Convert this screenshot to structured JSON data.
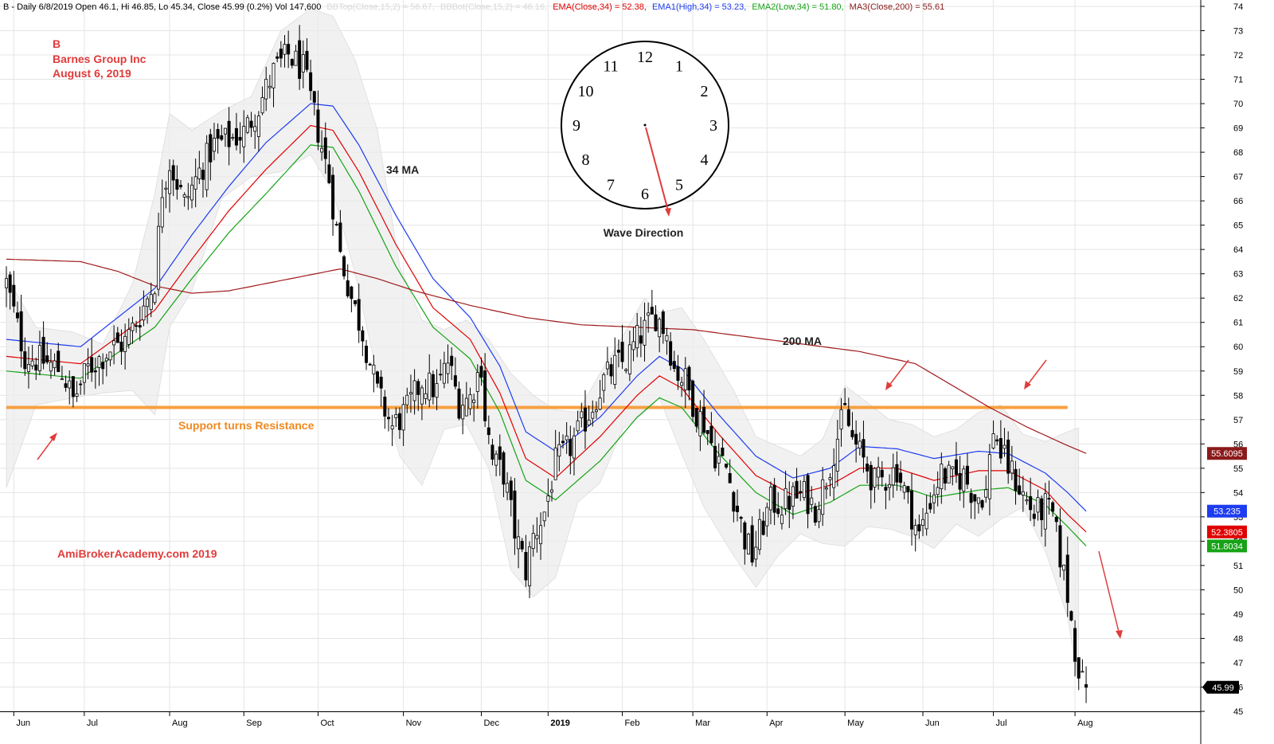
{
  "header": {
    "symbol_info": "B - Daily 6/8/2019 Open 46.1, Hi 46.85, Lo 45.34, Close 45.99 (0.2%) Vol 147,600",
    "bbtop": "BBTop(Close,15,2) = 56.67,",
    "bbbot": "BBBot(Close,15,2) = 46.16,",
    "ema": "EMA(Close,34) = 52.38,",
    "ema1": "EMA1(High,34) = 53.23,",
    "ema2": "EMA2(Low,34) = 51.80,",
    "ma3": "MA3(Close,200) = 55.61"
  },
  "titles": {
    "symbol": "B",
    "company": "Barnes Group Inc",
    "date": "August 6, 2019"
  },
  "annotations": {
    "ma34": "34 MA",
    "ma200": "200 MA",
    "support": "Support turns Resistance",
    "watermark": "AmiBrokerAcademy.com  2019",
    "wave": "Wave Direction"
  },
  "clock": {
    "numbers": [
      "12",
      "1",
      "2",
      "3",
      "4",
      "5",
      "6",
      "7",
      "8",
      "9",
      "10",
      "11"
    ]
  },
  "price_tags": [
    {
      "label": "55.6095",
      "value": 55.6095,
      "color": "#8b1a1a"
    },
    {
      "label": "53.235",
      "value": 53.235,
      "color": "#1e3cf0"
    },
    {
      "label": "52.3805",
      "value": 52.3805,
      "color": "#e00000"
    },
    {
      "label": "51.8034",
      "value": 51.8034,
      "color": "#16a316"
    },
    {
      "label": "45.99",
      "value": 45.99,
      "color": "#000000"
    }
  ],
  "colors": {
    "ema_close": "#e00000",
    "ema_high": "#1e3cf0",
    "ema_low": "#16a316",
    "ma200": "#a01a1a",
    "support": "#f7a040",
    "arrows": "#e03c3c",
    "title_text": "#e03c3c",
    "support_text": "#f0891f"
  },
  "chart_data": {
    "type": "candlestick",
    "ylim": [
      45,
      74
    ],
    "y_ticks": [
      45,
      46,
      47,
      48,
      49,
      50,
      51,
      52,
      53,
      54,
      55,
      56,
      57,
      58,
      59,
      60,
      61,
      62,
      63,
      64,
      65,
      66,
      67,
      68,
      69,
      70,
      71,
      72,
      73,
      74
    ],
    "x_ticks": [
      {
        "label": "Jun",
        "t": 2
      },
      {
        "label": "Jul",
        "t": 21
      },
      {
        "label": "Aug",
        "t": 44
      },
      {
        "label": "Sep",
        "t": 64
      },
      {
        "label": "Oct",
        "t": 84
      },
      {
        "label": "Nov",
        "t": 107
      },
      {
        "label": "Dec",
        "t": 128
      },
      {
        "label": "2019",
        "t": 146
      },
      {
        "label": "Feb",
        "t": 166
      },
      {
        "label": "Mar",
        "t": 185
      },
      {
        "label": "Apr",
        "t": 205
      },
      {
        "label": "May",
        "t": 226
      },
      {
        "label": "Jun",
        "t": 247
      },
      {
        "label": "Jul",
        "t": 266
      },
      {
        "label": "Aug",
        "t": 288
      }
    ],
    "close_anchors": [
      [
        0,
        62.6
      ],
      [
        5,
        59.6
      ],
      [
        10,
        59.4
      ],
      [
        15,
        59.0
      ],
      [
        18,
        57.8
      ],
      [
        22,
        59.1
      ],
      [
        28,
        59.9
      ],
      [
        32,
        60.2
      ],
      [
        36,
        61.3
      ],
      [
        40,
        62.7
      ],
      [
        42,
        66.5
      ],
      [
        44,
        67.6
      ],
      [
        48,
        65.9
      ],
      [
        52,
        67.2
      ],
      [
        56,
        68.3
      ],
      [
        60,
        68.5
      ],
      [
        64,
        68.8
      ],
      [
        68,
        69.9
      ],
      [
        72,
        71.3
      ],
      [
        76,
        72.0
      ],
      [
        80,
        71.4
      ],
      [
        84,
        68.9
      ],
      [
        87,
        66.9
      ],
      [
        90,
        63.8
      ],
      [
        93,
        62.0
      ],
      [
        96,
        60.6
      ],
      [
        100,
        58.1
      ],
      [
        104,
        56.7
      ],
      [
        108,
        57.4
      ],
      [
        112,
        58.6
      ],
      [
        116,
        58.2
      ],
      [
        119,
        59.4
      ],
      [
        122,
        57.7
      ],
      [
        125,
        57.9
      ],
      [
        128,
        59.3
      ],
      [
        129,
        57.2
      ],
      [
        131,
        55.3
      ],
      [
        134,
        54.8
      ],
      [
        137,
        52.4
      ],
      [
        140,
        50.8
      ],
      [
        142,
        52.2
      ],
      [
        145,
        53.2
      ],
      [
        148,
        55.2
      ],
      [
        152,
        55.9
      ],
      [
        155,
        56.7
      ],
      [
        158,
        57.6
      ],
      [
        161,
        58.6
      ],
      [
        164,
        59.2
      ],
      [
        167,
        59.4
      ],
      [
        170,
        60.3
      ],
      [
        173,
        60.9
      ],
      [
        175,
        61.3
      ],
      [
        178,
        60.6
      ],
      [
        180,
        59.1
      ],
      [
        183,
        58.6
      ],
      [
        186,
        57.3
      ],
      [
        188,
        56.9
      ],
      [
        191,
        55.6
      ],
      [
        194,
        55.0
      ],
      [
        197,
        53.3
      ],
      [
        199,
        52.1
      ],
      [
        201,
        51.4
      ],
      [
        203,
        52.3
      ],
      [
        206,
        53.6
      ],
      [
        209,
        53.5
      ],
      [
        212,
        53.8
      ],
      [
        215,
        53.9
      ],
      [
        218,
        53.4
      ],
      [
        221,
        54.6
      ],
      [
        224,
        56.3
      ],
      [
        226,
        57.3
      ],
      [
        228,
        56.2
      ],
      [
        231,
        55.3
      ],
      [
        234,
        54.4
      ],
      [
        237,
        54.6
      ],
      [
        240,
        55.0
      ],
      [
        243,
        53.6
      ],
      [
        246,
        52.2
      ],
      [
        249,
        53.7
      ],
      [
        252,
        54.8
      ],
      [
        255,
        54.5
      ],
      [
        258,
        54.7
      ],
      [
        261,
        53.8
      ],
      [
        264,
        54.0
      ],
      [
        266,
        56.7
      ],
      [
        268,
        55.6
      ],
      [
        271,
        54.8
      ],
      [
        274,
        53.9
      ],
      [
        277,
        53.1
      ],
      [
        280,
        53.4
      ],
      [
        282,
        53.0
      ],
      [
        284,
        51.4
      ],
      [
        286,
        49.8
      ],
      [
        288,
        47.6
      ],
      [
        290,
        46.1
      ],
      [
        291,
        45.99
      ]
    ],
    "n_bars": 292,
    "series": [
      {
        "name": "EMA(Close,34)",
        "anchors": [
          [
            0,
            59.6
          ],
          [
            20,
            59.3
          ],
          [
            40,
            61.5
          ],
          [
            50,
            63.6
          ],
          [
            60,
            65.6
          ],
          [
            70,
            67.3
          ],
          [
            82,
            69.1
          ],
          [
            88,
            68.9
          ],
          [
            95,
            67.2
          ],
          [
            105,
            64.2
          ],
          [
            115,
            61.6
          ],
          [
            125,
            60.3
          ],
          [
            133,
            58.1
          ],
          [
            140,
            55.4
          ],
          [
            148,
            54.6
          ],
          [
            160,
            56.3
          ],
          [
            170,
            58.0
          ],
          [
            176,
            58.8
          ],
          [
            182,
            58.3
          ],
          [
            192,
            56.4
          ],
          [
            202,
            54.7
          ],
          [
            212,
            53.9
          ],
          [
            222,
            54.3
          ],
          [
            230,
            55.0
          ],
          [
            240,
            55.0
          ],
          [
            250,
            54.5
          ],
          [
            262,
            54.9
          ],
          [
            270,
            54.9
          ],
          [
            280,
            54.1
          ],
          [
            286,
            53.1
          ],
          [
            291,
            52.38
          ]
        ]
      },
      {
        "name": "EMA1(High,34)",
        "anchors": [
          [
            0,
            60.3
          ],
          [
            20,
            60.0
          ],
          [
            40,
            62.4
          ],
          [
            50,
            64.6
          ],
          [
            60,
            66.6
          ],
          [
            70,
            68.4
          ],
          [
            82,
            70.0
          ],
          [
            88,
            69.9
          ],
          [
            95,
            68.3
          ],
          [
            105,
            65.4
          ],
          [
            115,
            62.8
          ],
          [
            125,
            61.2
          ],
          [
            133,
            59.2
          ],
          [
            140,
            56.5
          ],
          [
            148,
            55.7
          ],
          [
            160,
            57.1
          ],
          [
            170,
            58.8
          ],
          [
            176,
            59.6
          ],
          [
            182,
            59.1
          ],
          [
            192,
            57.2
          ],
          [
            202,
            55.5
          ],
          [
            212,
            54.6
          ],
          [
            222,
            55.0
          ],
          [
            230,
            55.9
          ],
          [
            240,
            55.8
          ],
          [
            250,
            55.4
          ],
          [
            262,
            55.7
          ],
          [
            270,
            55.6
          ],
          [
            280,
            54.8
          ],
          [
            286,
            54.0
          ],
          [
            291,
            53.23
          ]
        ]
      },
      {
        "name": "EMA2(Low,34)",
        "anchors": [
          [
            0,
            59.0
          ],
          [
            20,
            58.7
          ],
          [
            40,
            60.8
          ],
          [
            50,
            62.8
          ],
          [
            60,
            64.7
          ],
          [
            70,
            66.3
          ],
          [
            82,
            68.3
          ],
          [
            88,
            68.2
          ],
          [
            95,
            66.4
          ],
          [
            105,
            63.3
          ],
          [
            115,
            60.8
          ],
          [
            125,
            59.5
          ],
          [
            133,
            57.3
          ],
          [
            140,
            54.5
          ],
          [
            148,
            53.7
          ],
          [
            160,
            55.3
          ],
          [
            170,
            57.1
          ],
          [
            176,
            57.9
          ],
          [
            182,
            57.5
          ],
          [
            192,
            55.6
          ],
          [
            202,
            54.0
          ],
          [
            212,
            53.1
          ],
          [
            222,
            53.6
          ],
          [
            230,
            54.3
          ],
          [
            240,
            54.3
          ],
          [
            250,
            53.8
          ],
          [
            262,
            54.1
          ],
          [
            270,
            54.2
          ],
          [
            280,
            53.5
          ],
          [
            286,
            52.6
          ],
          [
            291,
            51.8
          ]
        ]
      },
      {
        "name": "MA3(Close,200)",
        "anchors": [
          [
            0,
            63.6
          ],
          [
            20,
            63.5
          ],
          [
            30,
            63.1
          ],
          [
            40,
            62.5
          ],
          [
            50,
            62.2
          ],
          [
            60,
            62.3
          ],
          [
            70,
            62.6
          ],
          [
            80,
            62.9
          ],
          [
            90,
            63.2
          ],
          [
            100,
            62.8
          ],
          [
            110,
            62.3
          ],
          [
            125,
            61.7
          ],
          [
            140,
            61.2
          ],
          [
            155,
            60.9
          ],
          [
            170,
            60.8
          ],
          [
            185,
            60.7
          ],
          [
            200,
            60.4
          ],
          [
            215,
            60.1
          ],
          [
            230,
            59.8
          ],
          [
            245,
            59.3
          ],
          [
            255,
            58.4
          ],
          [
            265,
            57.5
          ],
          [
            275,
            56.7
          ],
          [
            285,
            56.0
          ],
          [
            291,
            55.61
          ]
        ]
      }
    ],
    "bollinger_anchors": [
      [
        0,
        62.9,
        54.2
      ],
      [
        8,
        60.8,
        57.6
      ],
      [
        18,
        60.6,
        57.9
      ],
      [
        26,
        60.1,
        58.1
      ],
      [
        34,
        62.6,
        58.2
      ],
      [
        40,
        66.3,
        57.2
      ],
      [
        44,
        69.6,
        60.8
      ],
      [
        50,
        68.9,
        62.3
      ],
      [
        58,
        69.7,
        66.1
      ],
      [
        66,
        70.3,
        67.0
      ],
      [
        74,
        73.0,
        67.2
      ],
      [
        82,
        73.9,
        67.9
      ],
      [
        88,
        73.6,
        66.4
      ],
      [
        94,
        71.8,
        63.0
      ],
      [
        100,
        68.9,
        58.8
      ],
      [
        106,
        63.3,
        55.5
      ],
      [
        112,
        61.1,
        54.3
      ],
      [
        118,
        60.7,
        56.6
      ],
      [
        124,
        61.1,
        56.8
      ],
      [
        130,
        60.3,
        55.0
      ],
      [
        136,
        58.9,
        50.8
      ],
      [
        142,
        58.0,
        49.7
      ],
      [
        148,
        57.4,
        50.5
      ],
      [
        154,
        57.3,
        53.6
      ],
      [
        160,
        58.9,
        54.4
      ],
      [
        166,
        60.4,
        56.6
      ],
      [
        172,
        62.0,
        57.3
      ],
      [
        176,
        61.4,
        57.9
      ],
      [
        182,
        61.6,
        55.6
      ],
      [
        188,
        60.3,
        53.4
      ],
      [
        196,
        58.2,
        51.4
      ],
      [
        202,
        56.3,
        50.1
      ],
      [
        208,
        55.9,
        51.4
      ],
      [
        214,
        55.5,
        52.3
      ],
      [
        220,
        56.2,
        51.9
      ],
      [
        226,
        58.4,
        51.8
      ],
      [
        232,
        57.7,
        52.6
      ],
      [
        238,
        57.0,
        52.5
      ],
      [
        244,
        56.8,
        52.2
      ],
      [
        250,
        56.3,
        51.7
      ],
      [
        256,
        56.6,
        52.7
      ],
      [
        262,
        57.3,
        52.2
      ],
      [
        268,
        57.6,
        52.9
      ],
      [
        274,
        56.4,
        53.4
      ],
      [
        280,
        56.1,
        51.6
      ],
      [
        286,
        56.5,
        48.9
      ],
      [
        289,
        56.67,
        46.16
      ]
    ],
    "support_level": 57.5,
    "support_range": [
      0,
      286
    ]
  }
}
